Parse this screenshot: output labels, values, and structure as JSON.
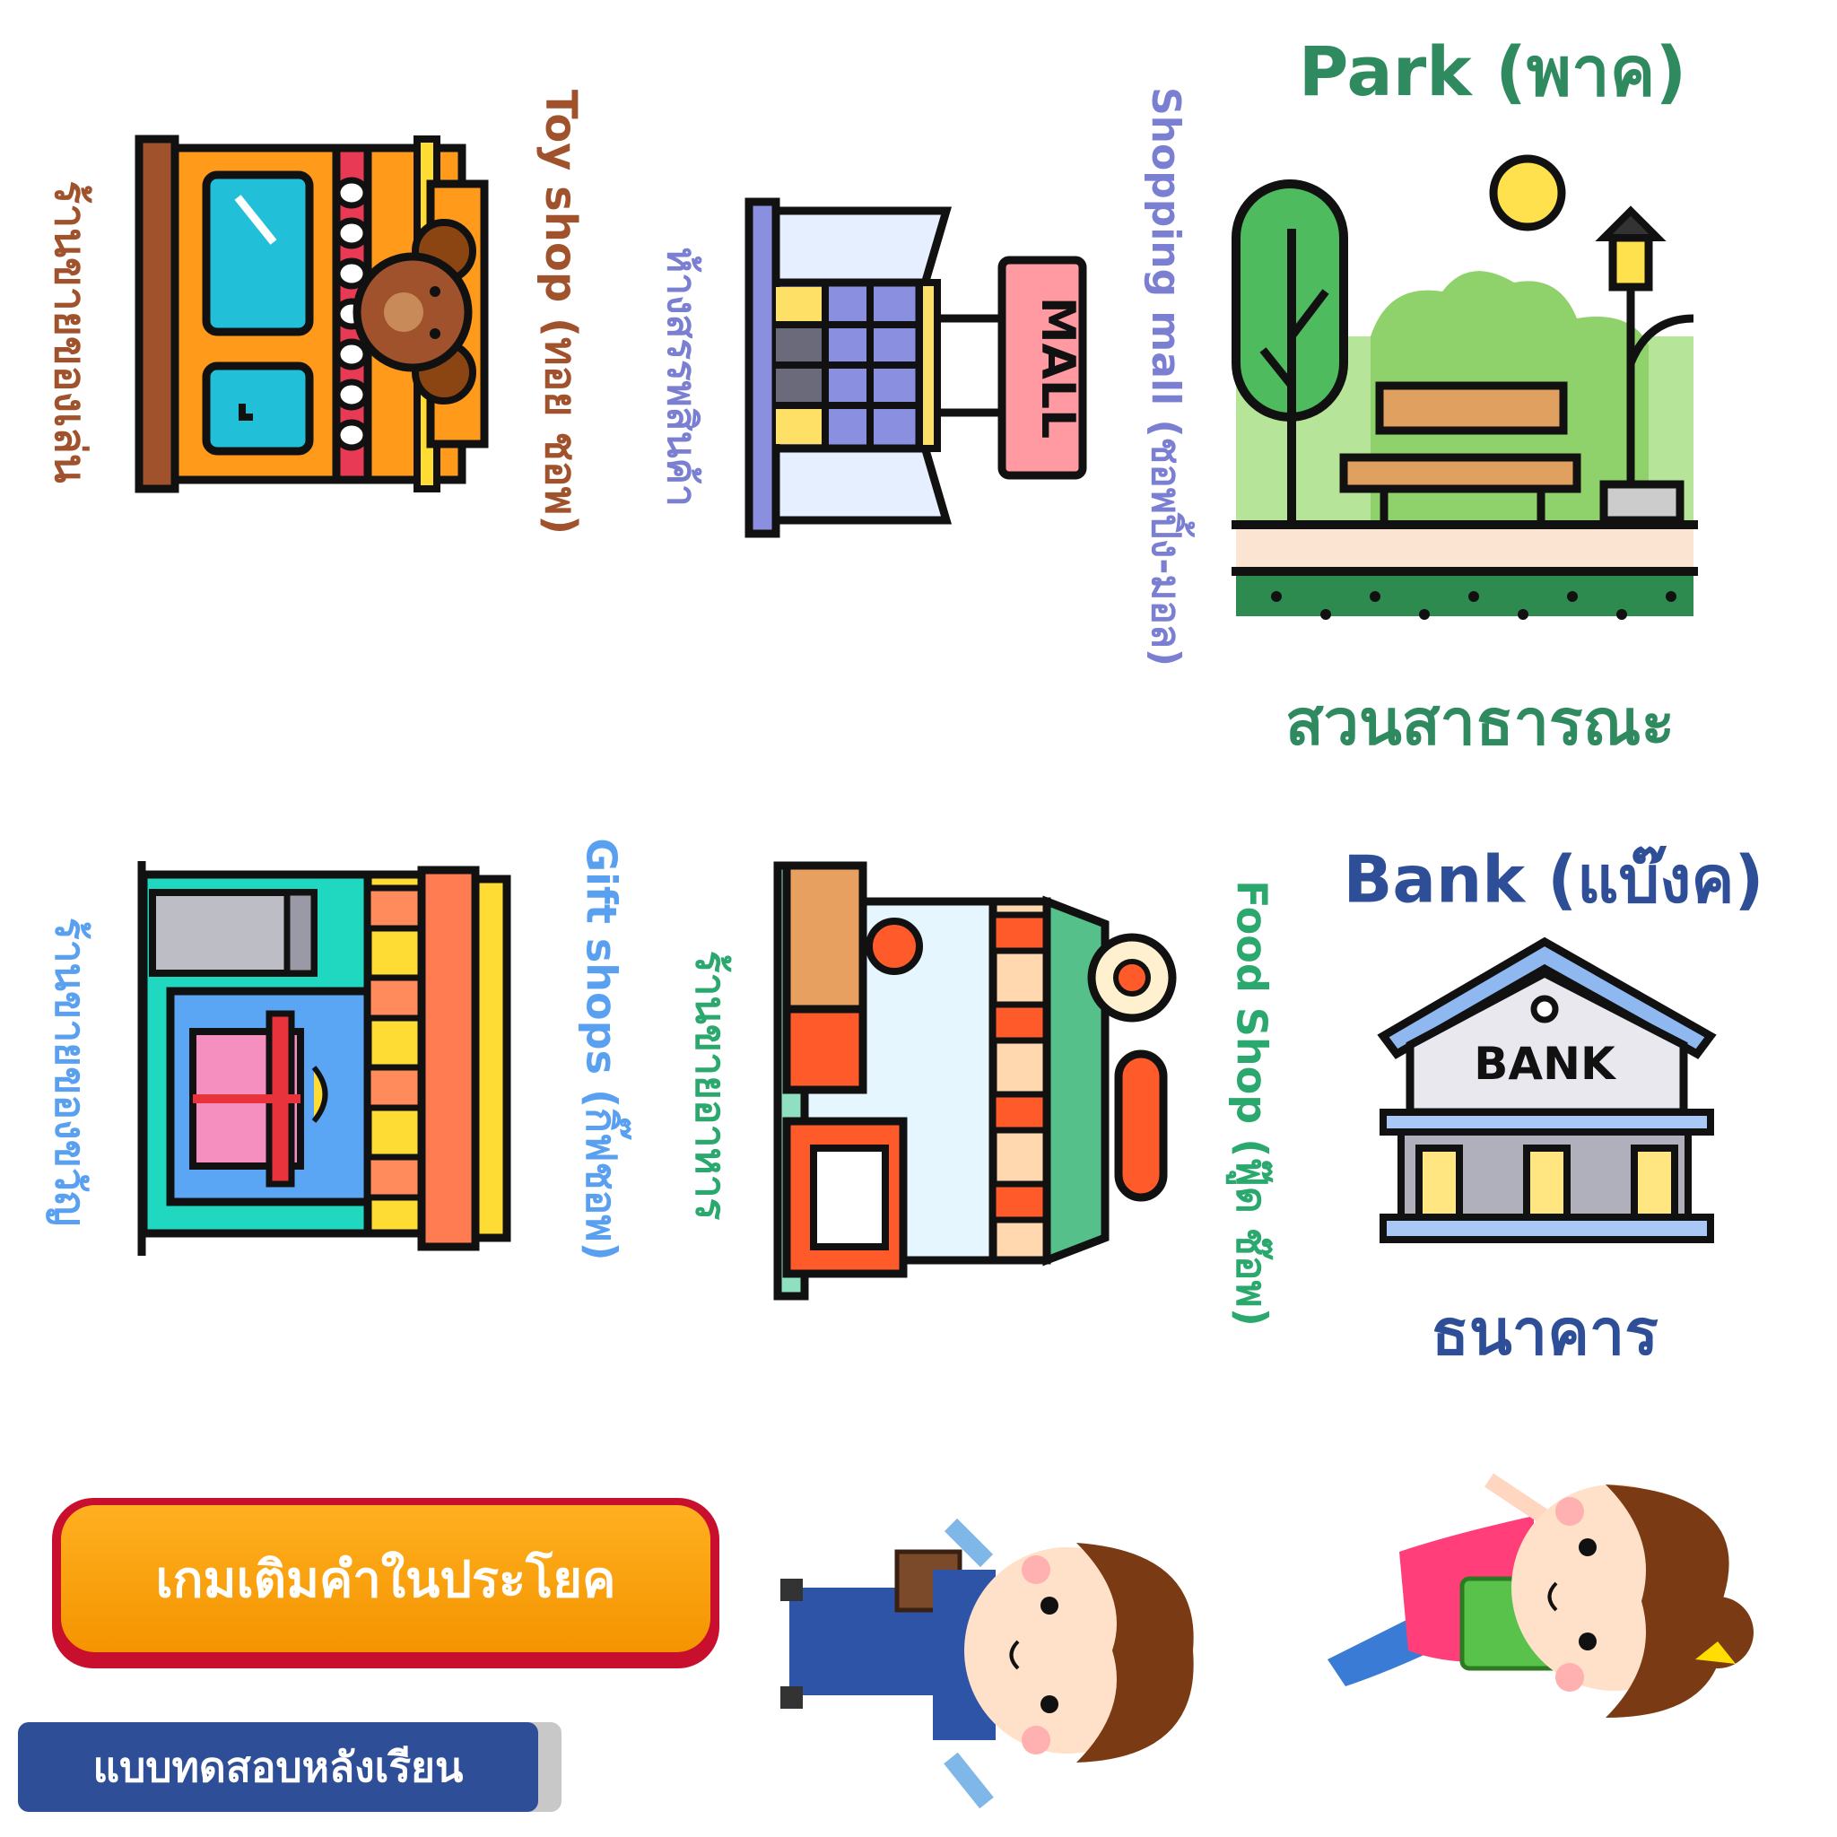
{
  "cards": {
    "park": {
      "title": "Park (พาค)",
      "thai": "สวนสาธารณะ",
      "color": "#2f8a5f",
      "icon": "park-icon"
    },
    "mall": {
      "title": "Shopping mall (ชอพปิ้ง-มอล)",
      "thai": "ห้างสรรพสินค้า",
      "sign": "MALL",
      "color": "#7b7fd1",
      "icon": "shopping-mall-icon"
    },
    "toy": {
      "title": "Toy shop (ทอย ชอพ)",
      "thai": "ร้านขายของเล่น",
      "color": "#a0522d",
      "icon": "toy-shop-icon"
    },
    "bank": {
      "title": "Bank (แบ๊งค)",
      "thai": "ธนาคาร",
      "sign": "BANK",
      "color": "#2e4f97",
      "icon": "bank-icon"
    },
    "food": {
      "title": "Food Shop (ฟู๊ด ช๊อพ)",
      "thai": "ร้านขายอาหาร",
      "color": "#2aa86e",
      "icon": "food-shop-icon"
    },
    "gift": {
      "title": "Gift shops (กิ๊ฟชอพ)",
      "thai": "ร้านขายของขวัญ",
      "color": "#5aa0f0",
      "icon": "gift-shop-icon"
    }
  },
  "buttons": {
    "game": "เกมเติมคำในประโยค",
    "quiz": "แบบทดสอบหลังเรียน"
  }
}
